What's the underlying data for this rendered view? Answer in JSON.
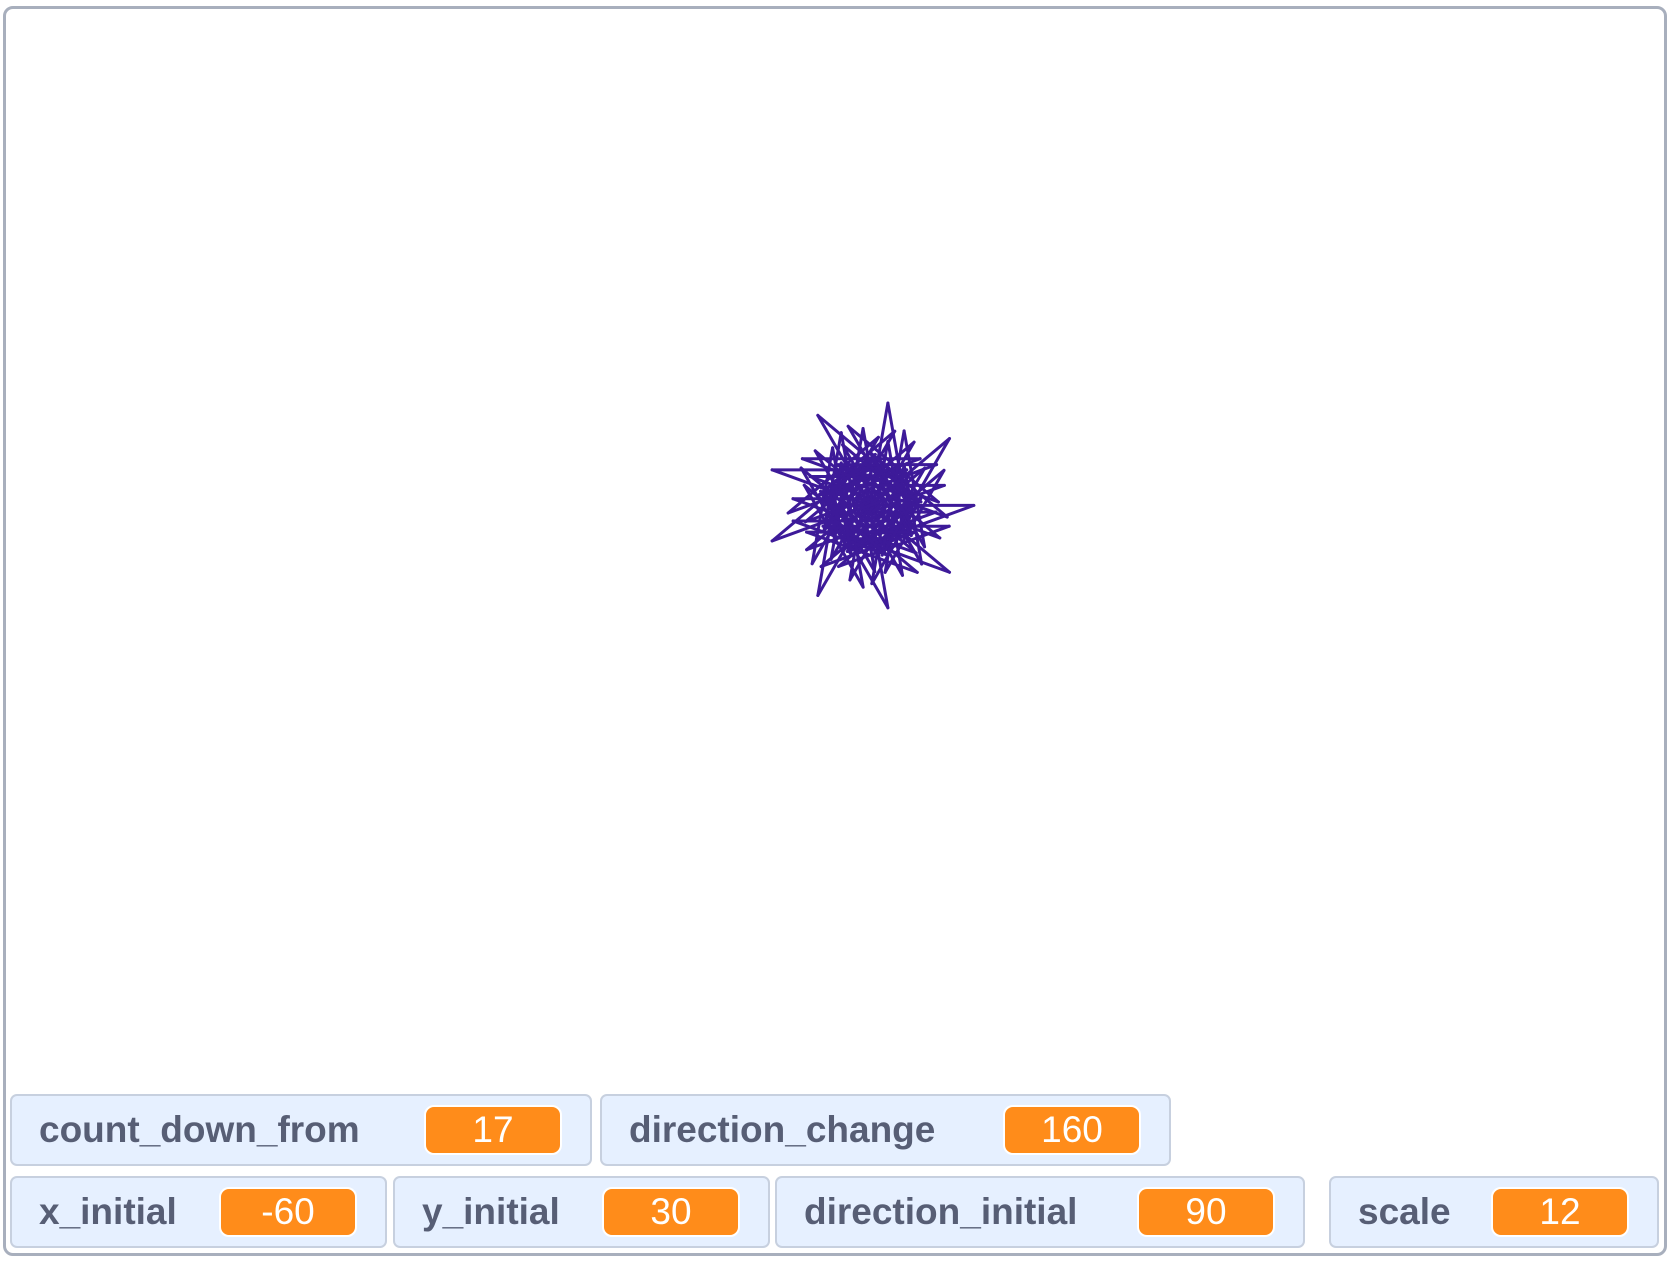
{
  "stage": {
    "pen_color": "#3d1a99",
    "background": "#ffffff"
  },
  "monitors": {
    "count_down_from": {
      "label": "count_down_from",
      "value": "17"
    },
    "direction_change": {
      "label": "direction_change",
      "value": "160"
    },
    "x_initial": {
      "label": "x_initial",
      "value": "-60"
    },
    "y_initial": {
      "label": "y_initial",
      "value": "30"
    },
    "direction_initial": {
      "label": "direction_initial",
      "value": "90"
    },
    "scale": {
      "label": "scale",
      "value": "12"
    }
  },
  "colors": {
    "monitor_background": "#e6f0ff",
    "monitor_border": "#c7d0df",
    "monitor_label": "#575e75",
    "value_badge": "#ff8c1a"
  }
}
